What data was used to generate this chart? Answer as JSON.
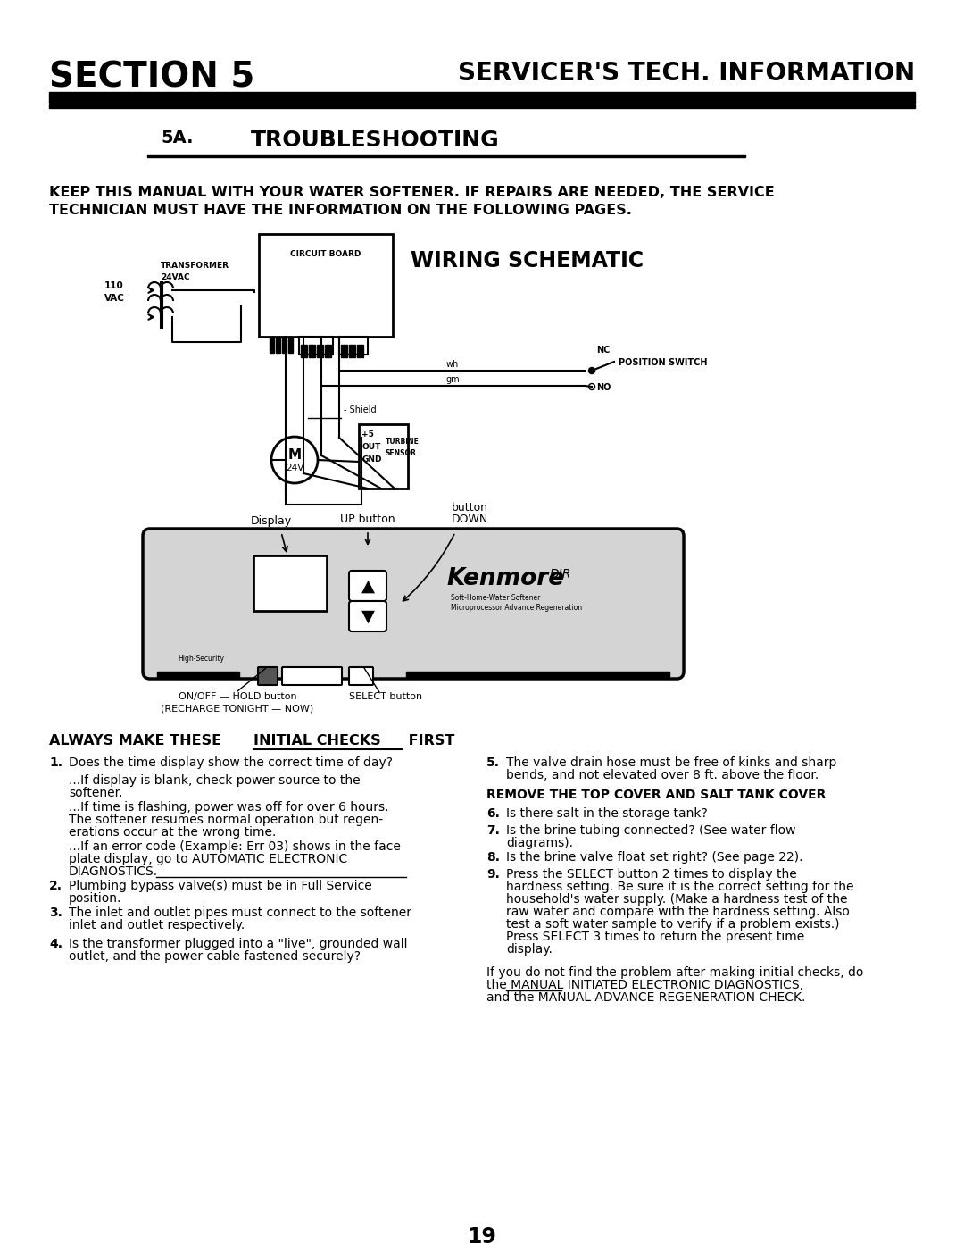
{
  "page_bg": "#ffffff",
  "section_title": "SECTION 5",
  "section_right": "SERVICER'S TECH. INFORMATION",
  "subsection": "5A.",
  "subsection_title": "TROUBLESHOOTING",
  "intro_line1": "KEEP THIS MANUAL WITH YOUR WATER SOFTENER. IF REPAIRS ARE NEEDED, THE SERVICE",
  "intro_line2": "TECHNICIAN MUST HAVE THE INFORMATION ON THE FOLLOWING PAGES.",
  "wiring_title": "WIRING SCHEMATIC",
  "page_number": "19"
}
